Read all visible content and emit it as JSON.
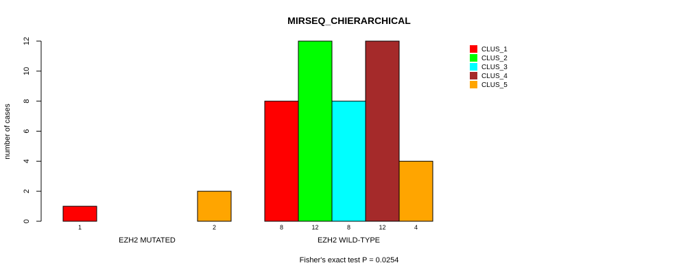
{
  "chart_data": {
    "type": "bar",
    "title": "MIRSEQ_CHIERARCHICAL",
    "ylabel": "number of cases",
    "xlabel": "",
    "ylim": [
      0,
      12
    ],
    "yticks": [
      0,
      2,
      4,
      6,
      8,
      10,
      12
    ],
    "categories": [
      "EZH2 MUTATED",
      "EZH2 WILD-TYPE"
    ],
    "series": [
      {
        "name": "CLUS_1",
        "color": "#ff0000",
        "values": [
          1,
          8
        ]
      },
      {
        "name": "CLUS_2",
        "color": "#00ff00",
        "values": [
          0,
          12
        ]
      },
      {
        "name": "CLUS_3",
        "color": "#00ffff",
        "values": [
          0,
          8
        ]
      },
      {
        "name": "CLUS_4",
        "color": "#a52a2a",
        "values": [
          0,
          12
        ]
      },
      {
        "name": "CLUS_5",
        "color": "#ffa500",
        "values": [
          2,
          4
        ]
      }
    ],
    "legend_position": "top-right",
    "grid": false,
    "footnote": "Fisher's exact test P = 0.0254"
  }
}
